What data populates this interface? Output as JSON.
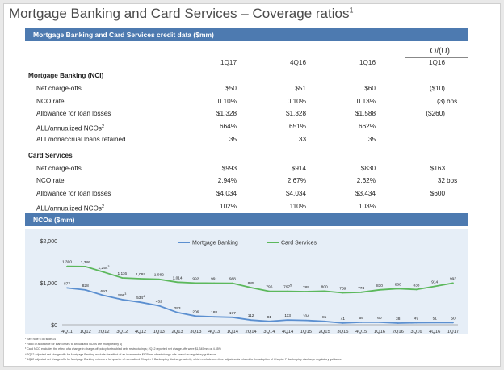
{
  "title": "Mortgage Banking and Card Services – Coverage ratios",
  "title_sup": "1",
  "table_header": "Mortgage Banking and Card Services credit data ($mm)",
  "oo_header": "O/(U)",
  "columns": [
    "1Q17",
    "4Q16",
    "1Q16",
    "1Q16"
  ],
  "sections": [
    {
      "name": "Mortgage Banking (NCI)",
      "rows": [
        {
          "label": "Net charge-offs",
          "vals": [
            "$50",
            "$51",
            "$60",
            "($10)"
          ],
          "suffix": ""
        },
        {
          "label": "NCO rate",
          "vals": [
            "0.10%",
            "0.10%",
            "0.13%",
            "(3)"
          ],
          "suffix": "bps"
        },
        {
          "label": "Allowance for loan losses",
          "vals": [
            "$1,328",
            "$1,328",
            "$1,588",
            "($260)"
          ],
          "suffix": ""
        },
        {
          "label": "ALL/annualized NCOs",
          "sup": "2",
          "vals": [
            "664%",
            "651%",
            "662%",
            ""
          ],
          "suffix": ""
        },
        {
          "label": "ALL/nonaccrual loans retained",
          "vals": [
            "35",
            "33",
            "35",
            ""
          ],
          "suffix": ""
        }
      ]
    },
    {
      "name": "Card Services",
      "rows": [
        {
          "label": "Net charge-offs",
          "vals": [
            "$993",
            "$914",
            "$830",
            "$163"
          ],
          "suffix": ""
        },
        {
          "label": "NCO rate",
          "vals": [
            "2.94%",
            "2.67%",
            "2.62%",
            "32"
          ],
          "suffix": "bps"
        },
        {
          "label": "Allowance for loan losses",
          "vals": [
            "$4,034",
            "$4,034",
            "$3,434",
            "$600"
          ],
          "suffix": ""
        },
        {
          "label": "ALL/annualized NCOs",
          "sup": "2",
          "vals": [
            "102%",
            "110%",
            "103%",
            ""
          ],
          "suffix": ""
        }
      ]
    }
  ],
  "chart_header": "NCOs ($mm)",
  "chart_data": {
    "type": "line",
    "categories": [
      "4Q11",
      "1Q12",
      "2Q12",
      "3Q12",
      "4Q12",
      "1Q13",
      "2Q13",
      "3Q13",
      "4Q13",
      "1Q14",
      "2Q14",
      "3Q14",
      "4Q14",
      "1Q15",
      "2Q15",
      "3Q15",
      "4Q15",
      "1Q16",
      "2Q16",
      "3Q16",
      "4Q16",
      "1Q17"
    ],
    "series": [
      {
        "name": "Mortgage Banking",
        "color": "#5b8fd0",
        "values": [
          877,
          828,
          697,
          599,
          534,
          452,
          293,
          206,
          188,
          177,
          112,
          81,
          113,
          104,
          81,
          41,
          59,
          60,
          38,
          49,
          51,
          50
        ],
        "labels": [
          "877",
          "828",
          "697",
          "599",
          "534",
          "452",
          "293",
          "206",
          "188",
          "177",
          "112",
          "81",
          "113",
          "104",
          "81",
          "41",
          "59",
          "60",
          "38",
          "49",
          "51",
          "50"
        ],
        "label_sups": [
          "",
          "",
          "",
          "3",
          "4",
          "",
          "",
          "",
          "",
          "",
          "",
          "",
          "",
          "",
          "",
          "",
          "",
          "",
          "",
          "",
          "",
          ""
        ]
      },
      {
        "name": "Card Services",
        "color": "#5cb85c",
        "values": [
          1390,
          1386,
          1254,
          1116,
          1097,
          1082,
          1014,
          992,
          991,
          988,
          885,
          796,
          797,
          789,
          800,
          759,
          774,
          830,
          860,
          838,
          914,
          993
        ],
        "labels": [
          "1,390",
          "1,386",
          "1,254",
          "1,116",
          "1,097",
          "1,082",
          "1,014",
          "992",
          "991",
          "988",
          "885",
          "796",
          "797",
          "789",
          "800",
          "759",
          "774",
          "830",
          "860",
          "838",
          "914",
          "993"
        ],
        "label_sups": [
          "",
          "",
          "3",
          "",
          "",
          "",
          "",
          "",
          "",
          "",
          "",
          "",
          "5",
          "",
          "",
          "",
          "",
          "",
          "",
          "",
          "",
          ""
        ]
      }
    ],
    "y_ticks": [
      "$2,000",
      "$1,000",
      "$0"
    ],
    "ylim": [
      0,
      2000
    ],
    "legend": "top-center"
  },
  "footnotes": [
    "¹ See note 6 on slide 14",
    "² Ratio of allowance for loan losses to annualized NCOs are multiplied by 4)",
    "³ Card NCO excludes the effect of a change in charge-off policy for troubled debt restructurings; 2Q12 reported net charge-offs were $1,345mm or 4.35%",
    "⁴ 3Q12 adjusted net charge-offs for Mortgage Banking exclude the effect of an incremental $825mm of net charge-offs based on regulatory guidance",
    "⁵ 4Q12 adjusted net charge-offs for Mortgage Banking reflects a full quarter of normalized Chapter 7 Bankruptcy discharge activity, which exclude one-time adjustments related to the adoption of Chapter 7 Bankruptcy discharge regulatory guidance"
  ]
}
